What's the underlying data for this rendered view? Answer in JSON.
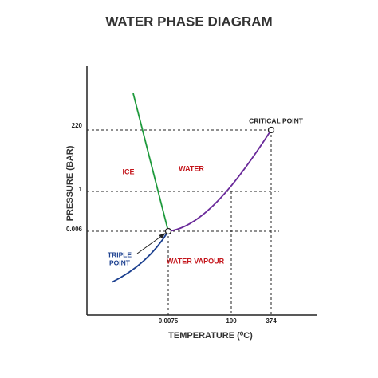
{
  "title": "WATER PHASE DIAGRAM",
  "axes": {
    "y_label": "PRESSURE (BAR)",
    "x_label": "TEMPERATURE (⁰C)",
    "y_ticks": [
      "220",
      "1",
      "0.006"
    ],
    "x_ticks": [
      "0.0075",
      "100",
      "374"
    ]
  },
  "regions": {
    "ice": "ICE",
    "water": "WATER",
    "vapour": "WATER VAPOUR"
  },
  "points": {
    "triple": [
      "TRIPLE",
      "POINT"
    ],
    "critical": "CRITICAL POINT"
  }
}
